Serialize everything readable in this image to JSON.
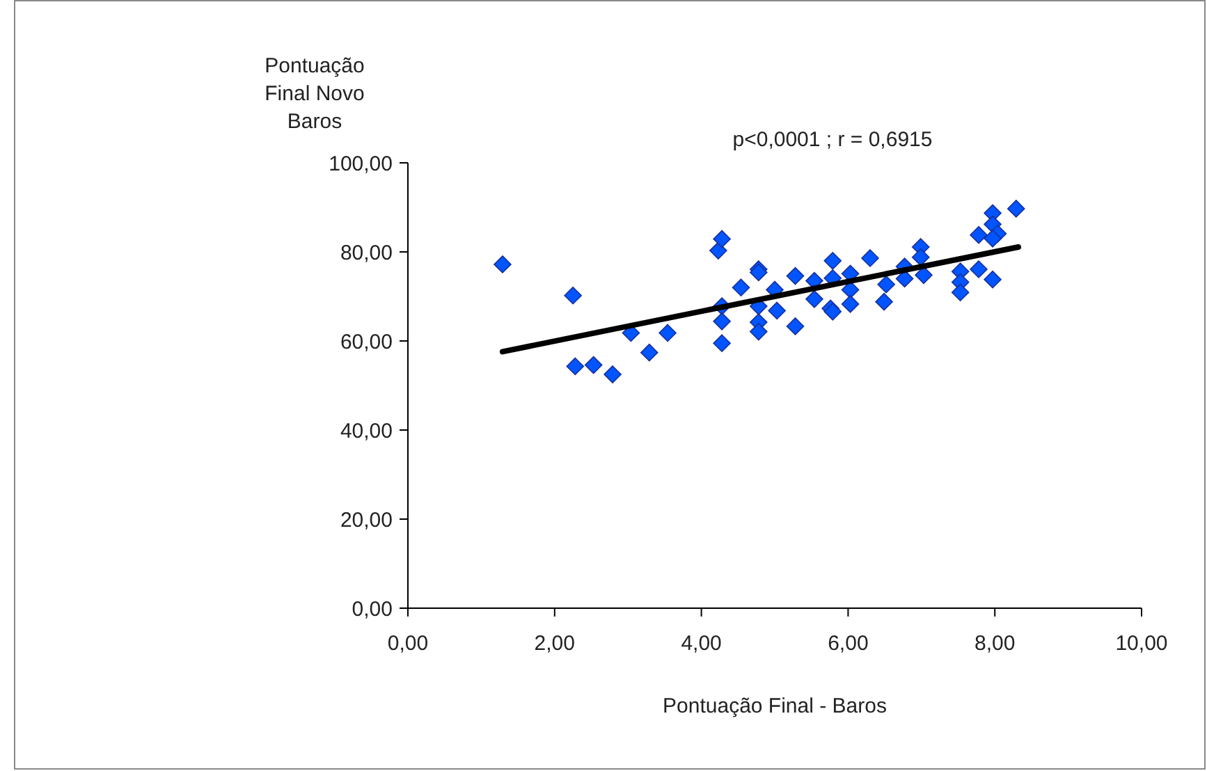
{
  "chart_data": {
    "type": "scatter",
    "xlabel": "Pontuação Final - Baros",
    "ylabel": "Pontuação Final Novo Baros",
    "annotations": [
      "p<0,0001 ; r = 0,6915"
    ],
    "xlim": [
      0,
      10
    ],
    "ylim": [
      0,
      100
    ],
    "xticks": [
      {
        "value": 0,
        "label": "0,00"
      },
      {
        "value": 2,
        "label": "2,00"
      },
      {
        "value": 4,
        "label": "4,00"
      },
      {
        "value": 6,
        "label": "6,00"
      },
      {
        "value": 8,
        "label": "8,00"
      },
      {
        "value": 10,
        "label": "10,00"
      }
    ],
    "yticks": [
      {
        "value": 0,
        "label": "0,00"
      },
      {
        "value": 20,
        "label": "20,00"
      },
      {
        "value": 40,
        "label": "40,00"
      },
      {
        "value": 60,
        "label": "60,00"
      },
      {
        "value": 80,
        "label": "80,00"
      },
      {
        "value": 100,
        "label": "100,00"
      }
    ],
    "grid": false,
    "marker": "diamond",
    "series": [
      {
        "color": "#0055ff",
        "x": [
          1.29,
          2.25,
          2.28,
          2.53,
          2.79,
          3.04,
          3.29,
          3.54,
          4.23,
          4.28,
          4.28,
          4.28,
          4.28,
          4.54,
          4.78,
          4.78,
          4.78,
          4.78,
          4.78,
          5.0,
          5.03,
          5.28,
          5.28,
          5.54,
          5.54,
          5.79,
          5.79,
          5.76,
          5.79,
          6.03,
          6.03,
          6.03,
          6.3,
          6.52,
          6.49,
          6.77,
          6.77,
          6.99,
          6.99,
          7.03,
          7.53,
          7.53,
          7.53,
          7.78,
          7.78,
          7.97,
          7.97,
          8.04,
          7.97,
          7.97,
          8.29
        ],
        "values": [
          77.2,
          70.2,
          54.3,
          54.6,
          52.5,
          61.8,
          57.4,
          61.8,
          80.3,
          82.9,
          67.8,
          64.4,
          59.5,
          72,
          76.1,
          75.4,
          67.8,
          64.2,
          62.1,
          71.5,
          66.8,
          74.6,
          63.3,
          73.5,
          69.4,
          78,
          74.1,
          67.3,
          66.6,
          75.1,
          71.5,
          68.3,
          78.6,
          72.7,
          68.8,
          76.7,
          74,
          81.1,
          78.8,
          74.8,
          75.6,
          73.2,
          70.9,
          83.8,
          76.1,
          88.7,
          86.2,
          84.1,
          83,
          73.8,
          89.7
        ]
      },
      {
        "type": "line",
        "color": "#000000",
        "line_style": "solid",
        "marker": "none",
        "x": [
          1.29,
          8.32
        ],
        "values": [
          57.6,
          81.1
        ]
      }
    ]
  }
}
